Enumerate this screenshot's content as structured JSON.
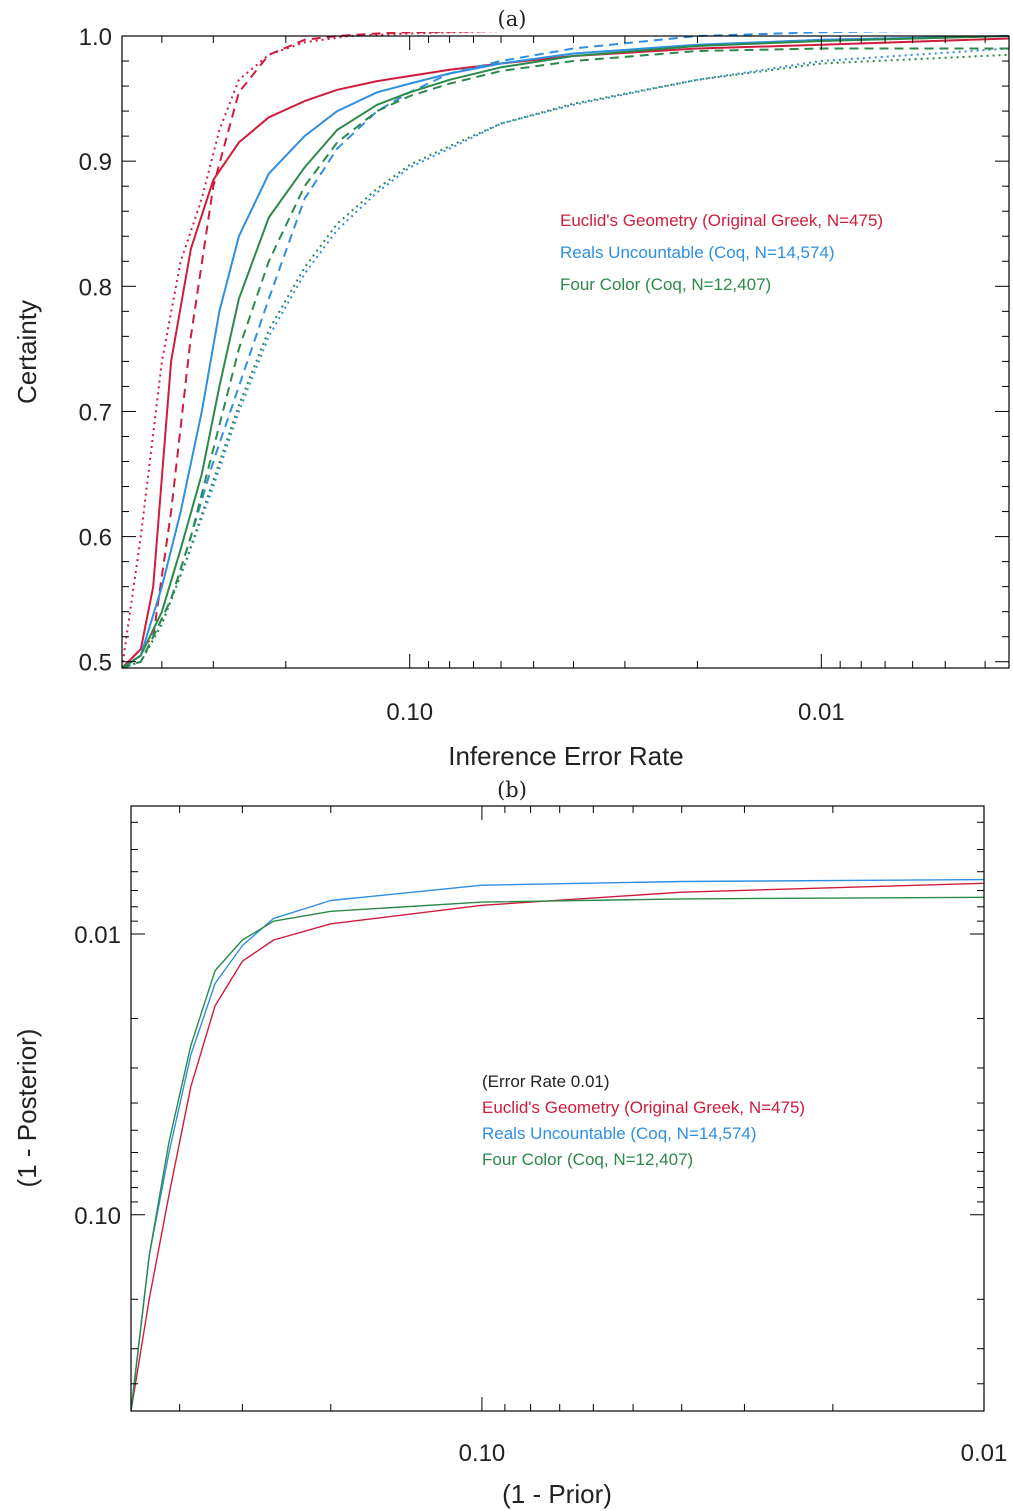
{
  "colors": {
    "euclid": "#d01c3c",
    "reals": "#2f8fe0",
    "fourcolor": "#2b8a4a",
    "text": "#222222"
  },
  "chart_data": [
    {
      "type": "line",
      "title": "(a)",
      "xlabel": "Inference Error Rate",
      "ylabel": "Certainty",
      "xscale": "log",
      "xaxis_reversed": true,
      "xlim": [
        0.5,
        0.0035
      ],
      "ylim": [
        0.495,
        1.0
      ],
      "xticks": [
        {
          "value": 0.1,
          "label": "0.10"
        },
        {
          "value": 0.01,
          "label": "0.01"
        }
      ],
      "yticks": [
        {
          "value": 0.5,
          "label": "0.5"
        },
        {
          "value": 0.6,
          "label": "0.6"
        },
        {
          "value": 0.7,
          "label": "0.7"
        },
        {
          "value": 0.8,
          "label": "0.8"
        },
        {
          "value": 0.9,
          "label": "0.9"
        },
        {
          "value": 1.0,
          "label": "1.0"
        }
      ],
      "legend_position": "center-right",
      "legend": [
        {
          "label": "Euclid's Geometry (Original Greek, N=475)",
          "color_key": "euclid"
        },
        {
          "label": "Reals Uncountable (Coq, N=14,574)",
          "color_key": "reals"
        },
        {
          "label": "Four Color (Coq, N=12,407)",
          "color_key": "fourcolor"
        }
      ],
      "series": [
        {
          "color_key": "euclid",
          "style": "solid",
          "x": [
            0.5,
            0.45,
            0.42,
            0.38,
            0.34,
            0.3,
            0.26,
            0.22,
            0.18,
            0.15,
            0.12,
            0.1,
            0.08,
            0.06,
            0.04,
            0.02,
            0.01,
            0.0035
          ],
          "y": [
            0.495,
            0.51,
            0.56,
            0.74,
            0.83,
            0.885,
            0.915,
            0.935,
            0.948,
            0.957,
            0.964,
            0.968,
            0.973,
            0.978,
            0.984,
            0.99,
            0.993,
            0.998
          ]
        },
        {
          "color_key": "euclid",
          "style": "dashed",
          "x": [
            0.5,
            0.42,
            0.38,
            0.34,
            0.3,
            0.26,
            0.22,
            0.18,
            0.15,
            0.12,
            0.1,
            0.06,
            0.02,
            0.0035
          ],
          "y": [
            0.495,
            0.52,
            0.62,
            0.76,
            0.88,
            0.955,
            0.985,
            0.997,
            1.0,
            1.002,
            1.003,
            1.004,
            1.005,
            1.006
          ]
        },
        {
          "color_key": "euclid",
          "style": "dotted",
          "x": [
            0.5,
            0.45,
            0.4,
            0.36,
            0.32,
            0.29,
            0.26,
            0.22,
            0.18,
            0.14,
            0.1,
            0.06,
            0.02,
            0.0035
          ],
          "y": [
            0.495,
            0.6,
            0.74,
            0.82,
            0.87,
            0.925,
            0.965,
            0.985,
            0.995,
            1.0,
            1.002,
            1.004,
            1.004,
            1.005
          ]
        },
        {
          "color_key": "reals",
          "style": "solid",
          "x": [
            0.5,
            0.45,
            0.4,
            0.36,
            0.32,
            0.29,
            0.26,
            0.22,
            0.18,
            0.15,
            0.12,
            0.1,
            0.08,
            0.06,
            0.04,
            0.02,
            0.01,
            0.0035
          ],
          "y": [
            0.495,
            0.505,
            0.56,
            0.62,
            0.7,
            0.78,
            0.84,
            0.89,
            0.92,
            0.94,
            0.955,
            0.962,
            0.97,
            0.978,
            0.986,
            0.993,
            0.997,
            1.0
          ]
        },
        {
          "color_key": "reals",
          "style": "dashed",
          "x": [
            0.5,
            0.45,
            0.42,
            0.38,
            0.34,
            0.3,
            0.26,
            0.22,
            0.18,
            0.15,
            0.12,
            0.1,
            0.08,
            0.06,
            0.04,
            0.02,
            0.01,
            0.0035
          ],
          "y": [
            0.495,
            0.5,
            0.52,
            0.55,
            0.6,
            0.66,
            0.72,
            0.79,
            0.87,
            0.91,
            0.94,
            0.955,
            0.97,
            0.98,
            0.99,
            1.0,
            1.003,
            1.005
          ]
        },
        {
          "color_key": "reals",
          "style": "dotted",
          "x": [
            0.5,
            0.45,
            0.4,
            0.35,
            0.3,
            0.26,
            0.22,
            0.18,
            0.15,
            0.12,
            0.1,
            0.08,
            0.06,
            0.04,
            0.02,
            0.01,
            0.0035
          ],
          "y": [
            0.495,
            0.5,
            0.53,
            0.58,
            0.64,
            0.7,
            0.76,
            0.81,
            0.845,
            0.875,
            0.895,
            0.91,
            0.93,
            0.945,
            0.965,
            0.98,
            0.99
          ]
        },
        {
          "color_key": "fourcolor",
          "style": "solid",
          "x": [
            0.5,
            0.45,
            0.4,
            0.36,
            0.32,
            0.29,
            0.26,
            0.22,
            0.18,
            0.15,
            0.12,
            0.1,
            0.08,
            0.06,
            0.04,
            0.02,
            0.01,
            0.0035
          ],
          "y": [
            0.495,
            0.505,
            0.54,
            0.59,
            0.65,
            0.72,
            0.79,
            0.855,
            0.895,
            0.925,
            0.945,
            0.955,
            0.965,
            0.975,
            0.984,
            0.992,
            0.996,
            1.0
          ]
        },
        {
          "color_key": "fourcolor",
          "style": "dashed",
          "x": [
            0.5,
            0.45,
            0.42,
            0.38,
            0.34,
            0.3,
            0.26,
            0.22,
            0.18,
            0.15,
            0.12,
            0.1,
            0.08,
            0.06,
            0.04,
            0.02,
            0.01,
            0.0035
          ],
          "y": [
            0.495,
            0.5,
            0.52,
            0.55,
            0.6,
            0.67,
            0.75,
            0.82,
            0.88,
            0.915,
            0.94,
            0.952,
            0.962,
            0.972,
            0.98,
            0.988,
            0.99,
            0.99
          ]
        },
        {
          "color_key": "fourcolor",
          "style": "dotted",
          "x": [
            0.5,
            0.45,
            0.4,
            0.35,
            0.3,
            0.26,
            0.22,
            0.18,
            0.15,
            0.12,
            0.1,
            0.08,
            0.06,
            0.04,
            0.02,
            0.01,
            0.0035
          ],
          "y": [
            0.495,
            0.5,
            0.53,
            0.58,
            0.645,
            0.705,
            0.765,
            0.815,
            0.85,
            0.878,
            0.897,
            0.912,
            0.93,
            0.946,
            0.965,
            0.978,
            0.985
          ]
        }
      ]
    },
    {
      "type": "line",
      "title": "(b)",
      "xlabel": "(1 - Prior)",
      "ylabel": "(1 - Posterior)",
      "xscale": "log",
      "yscale": "log",
      "xaxis_reversed": true,
      "yaxis_reversed": true,
      "xlim": [
        0.5,
        0.01
      ],
      "ylim": [
        0.5,
        0.0035
      ],
      "xticks": [
        {
          "value": 0.1,
          "label": "0.10"
        },
        {
          "value": 0.01,
          "label": "0.01"
        }
      ],
      "yticks": [
        {
          "value": 0.1,
          "label": "0.10"
        },
        {
          "value": 0.01,
          "label": "0.01"
        }
      ],
      "legend_position": "center-right",
      "legend": [
        {
          "label": "(Error Rate 0.01)",
          "color_key": "text"
        },
        {
          "label": "Euclid's Geometry (Original Greek, N=475)",
          "color_key": "euclid"
        },
        {
          "label": "Reals Uncountable (Coq, N=14,574)",
          "color_key": "reals"
        },
        {
          "label": "Four Color (Coq, N=12,407)",
          "color_key": "fourcolor"
        }
      ],
      "series": [
        {
          "color_key": "euclid",
          "style": "solid",
          "x": [
            0.5,
            0.46,
            0.42,
            0.38,
            0.34,
            0.3,
            0.26,
            0.2,
            0.1,
            0.04,
            0.01
          ],
          "y": [
            0.5,
            0.2,
            0.085,
            0.035,
            0.018,
            0.0125,
            0.0105,
            0.0092,
            0.0079,
            0.0071,
            0.0066
          ]
        },
        {
          "color_key": "reals",
          "style": "solid",
          "x": [
            0.5,
            0.46,
            0.42,
            0.38,
            0.34,
            0.3,
            0.26,
            0.2,
            0.1,
            0.04,
            0.01
          ],
          "y": [
            0.5,
            0.14,
            0.06,
            0.027,
            0.015,
            0.011,
            0.0088,
            0.0076,
            0.0067,
            0.0065,
            0.0064
          ]
        },
        {
          "color_key": "fourcolor",
          "style": "solid",
          "x": [
            0.5,
            0.46,
            0.42,
            0.38,
            0.34,
            0.3,
            0.26,
            0.2,
            0.1,
            0.04,
            0.01
          ],
          "y": [
            0.5,
            0.14,
            0.055,
            0.025,
            0.0135,
            0.0105,
            0.009,
            0.0083,
            0.0077,
            0.0075,
            0.0074
          ]
        }
      ]
    }
  ]
}
